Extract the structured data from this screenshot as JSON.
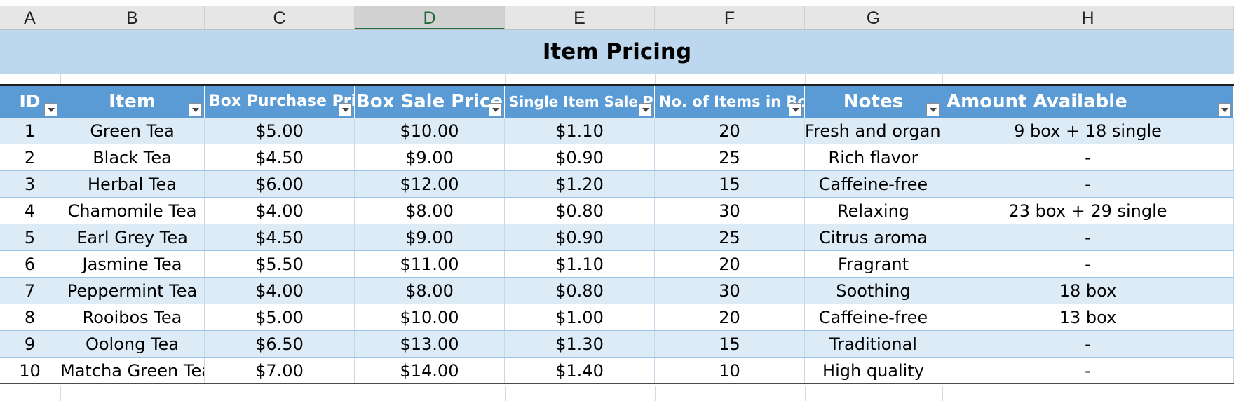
{
  "spreadsheet": {
    "column_letters": [
      "A",
      "B",
      "C",
      "D",
      "E",
      "F",
      "G",
      "H"
    ],
    "selected_column": "D",
    "title": "Item Pricing",
    "headers": [
      "ID",
      "Item",
      "Box Purchase Price",
      "Box Sale Price",
      "Single Item Sale Price",
      "No. of Items in Box",
      "Notes",
      "Amount Available"
    ],
    "rows": [
      [
        "1",
        "Green Tea",
        "$5.00",
        "$10.00",
        "$1.10",
        "20",
        "Fresh and organic",
        "9 box + 18 single"
      ],
      [
        "2",
        "Black Tea",
        "$4.50",
        "$9.00",
        "$0.90",
        "25",
        "Rich flavor",
        "-"
      ],
      [
        "3",
        "Herbal Tea",
        "$6.00",
        "$12.00",
        "$1.20",
        "15",
        "Caffeine-free",
        "-"
      ],
      [
        "4",
        "Chamomile Tea",
        "$4.00",
        "$8.00",
        "$0.80",
        "30",
        "Relaxing",
        "23 box + 29 single"
      ],
      [
        "5",
        "Earl Grey Tea",
        "$4.50",
        "$9.00",
        "$0.90",
        "25",
        "Citrus aroma",
        "-"
      ],
      [
        "6",
        "Jasmine Tea",
        "$5.50",
        "$11.00",
        "$1.10",
        "20",
        "Fragrant",
        "-"
      ],
      [
        "7",
        "Peppermint Tea",
        "$4.00",
        "$8.00",
        "$0.80",
        "30",
        "Soothing",
        "18 box"
      ],
      [
        "8",
        "Rooibos Tea",
        "$5.00",
        "$10.00",
        "$1.00",
        "20",
        "Caffeine-free",
        "13 box"
      ],
      [
        "9",
        "Oolong Tea",
        "$6.50",
        "$13.00",
        "$1.30",
        "15",
        "Traditional",
        "-"
      ],
      [
        "10",
        "Matcha Green Tea",
        "$7.00",
        "$14.00",
        "$1.40",
        "10",
        "High quality",
        "-"
      ]
    ]
  },
  "colors": {
    "title_band": "#bdd7ee",
    "header_fill": "#5b9bd5",
    "band_row": "#ddebf7",
    "selected_col_letter": "#1e6b3a"
  }
}
